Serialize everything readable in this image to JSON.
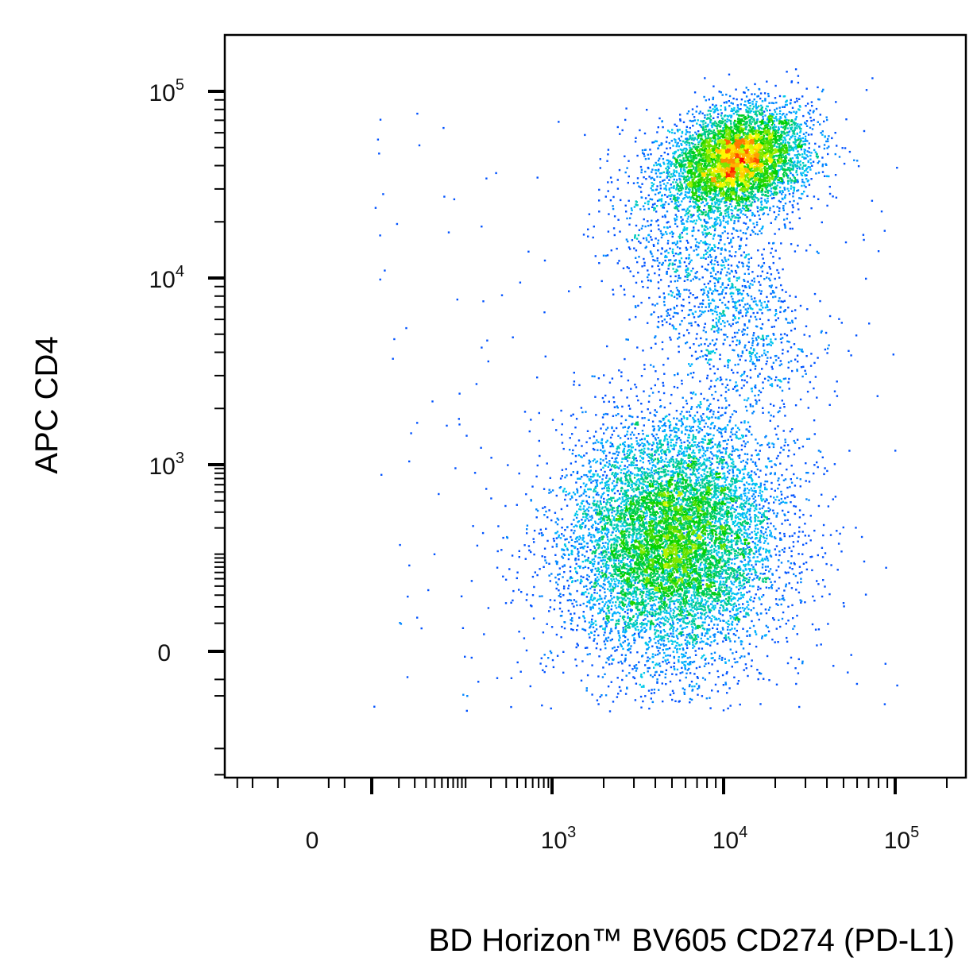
{
  "chart_data": {
    "type": "scatter",
    "style": "density-colored dot plot (blue → cyan → green → yellow → red)",
    "xlabel": "BD Horizon™ BV605 CD274 (PD-L1)",
    "ylabel": "APC CD4",
    "x_scale": "biexponential",
    "y_scale": "biexponential",
    "x_ticks": [
      {
        "value": 0,
        "base": "0",
        "exp": ""
      },
      {
        "value": 1000,
        "base": "10",
        "exp": "3"
      },
      {
        "value": 10000,
        "base": "10",
        "exp": "4"
      },
      {
        "value": 100000,
        "base": "10",
        "exp": "5"
      }
    ],
    "y_ticks": [
      {
        "value": 0,
        "base": "0",
        "exp": ""
      },
      {
        "value": 1000,
        "base": "10",
        "exp": "3"
      },
      {
        "value": 10000,
        "base": "10",
        "exp": "4"
      },
      {
        "value": 100000,
        "base": "10",
        "exp": "5"
      }
    ],
    "populations": [
      {
        "name": "",
        "x_center": 10000,
        "y_center": 50000,
        "x_range": [
          1000,
          70000
        ],
        "y_range": [
          15000,
          150000
        ],
        "density_peak": "high"
      },
      {
        "name": "",
        "x_center": 3500,
        "y_center": 400,
        "x_range": [
          200,
          100000
        ],
        "y_range": [
          -150,
          5000
        ],
        "density_peak": "medium"
      }
    ],
    "colors": {
      "low": "#0000ff",
      "mid_low": "#00c8ff",
      "mid": "#00d000",
      "mid_high": "#ffff00",
      "high": "#ff0000"
    },
    "grid": false,
    "legend": "none"
  }
}
